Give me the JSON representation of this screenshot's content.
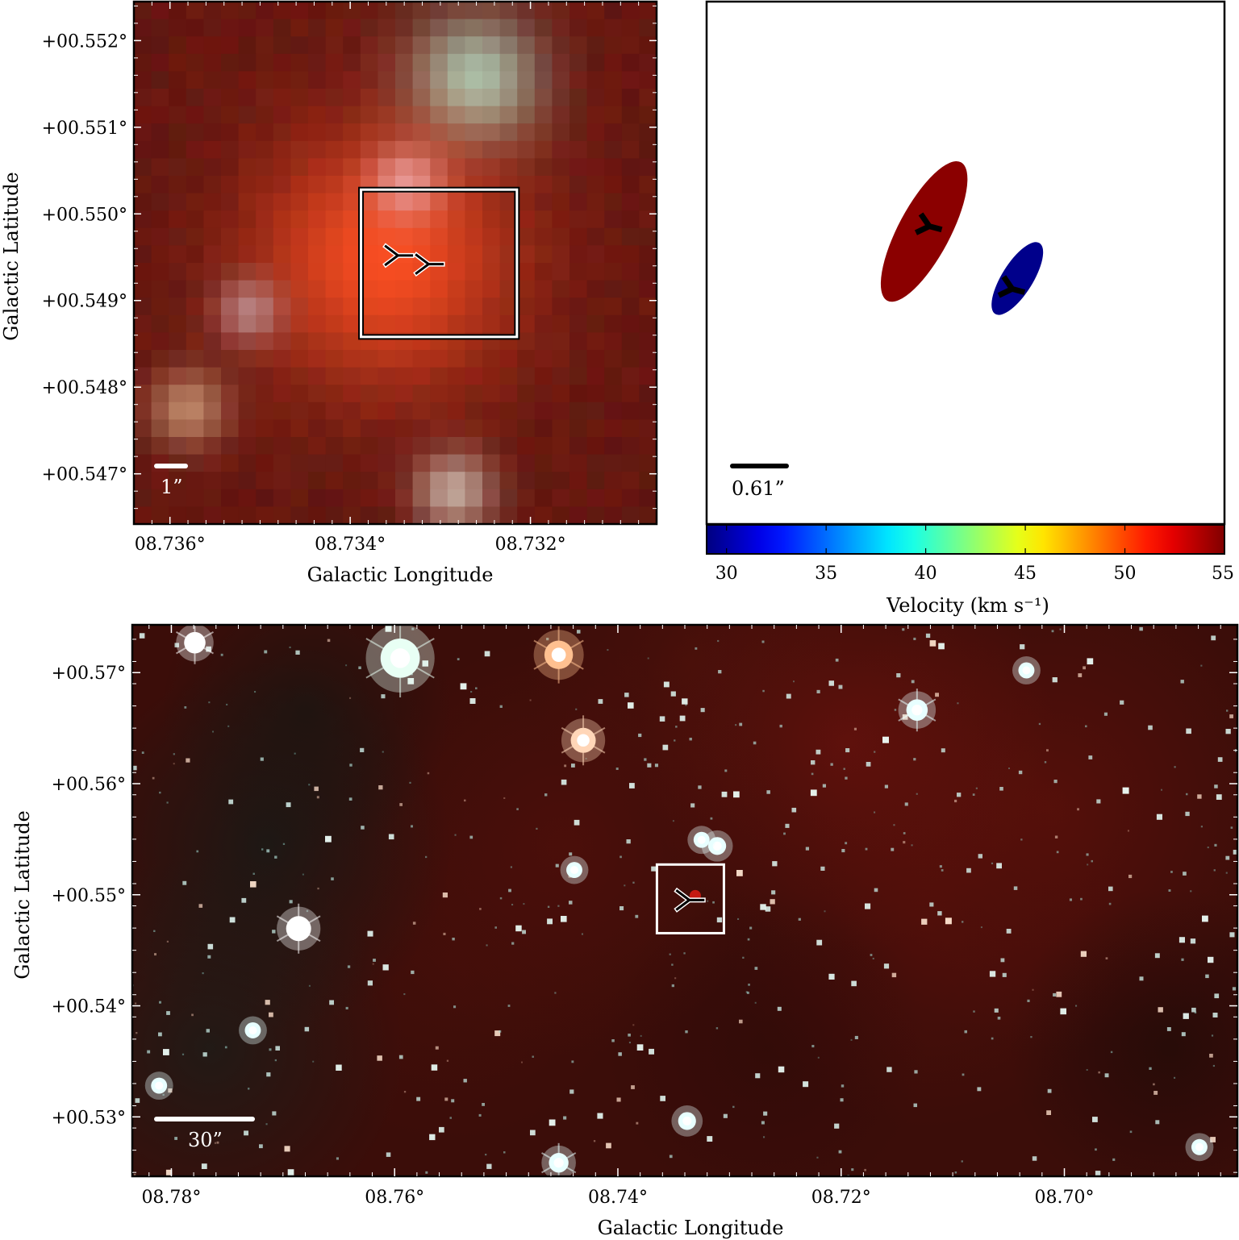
{
  "chart_data": [
    {
      "type": "image",
      "panel": "top-left zoom",
      "xlabel": "Galactic Longitude",
      "ylabel": "Galactic Latitude",
      "xlim": [
        8.7364,
        8.7306
      ],
      "ylim": [
        0.54642,
        0.55245
      ],
      "x_ticks": [
        8.736,
        8.734,
        8.732
      ],
      "x_tick_labels": [
        "08.736°",
        "08.734°",
        "08.732°"
      ],
      "y_ticks": [
        0.552,
        0.551,
        0.55,
        0.549,
        0.548,
        0.547
      ],
      "y_tick_labels": [
        "+00.552°",
        "+00.551°",
        "+00.550°",
        "+00.549°",
        "+00.548°",
        "+00.547°"
      ],
      "scale_bar_label": "1”",
      "box": {
        "l": [
          8.73388,
          8.73215
        ],
        "b": [
          0.54858,
          0.55028
        ]
      },
      "markers": [
        {
          "l": 8.73347,
          "b": 0.54952
        },
        {
          "l": 8.73313,
          "b": 0.54942
        }
      ],
      "sources": [
        {
          "l": 8.73262,
          "b": 0.55155,
          "color": "#a7cfb9",
          "size": 0.0005
        },
        {
          "l": 8.7336,
          "b": 0.5495,
          "color": "#ff5022",
          "size": 0.001
        },
        {
          "l": 8.73338,
          "b": 0.55035,
          "color": "#e89a98",
          "size": 0.00028
        },
        {
          "l": 8.73512,
          "b": 0.54888,
          "color": "#b98484",
          "size": 0.00025
        },
        {
          "l": 8.7358,
          "b": 0.54775,
          "color": "#c08a6a",
          "size": 0.0003
        },
        {
          "l": 8.73285,
          "b": 0.5468,
          "color": "#c6ada0",
          "size": 0.0003
        }
      ]
    },
    {
      "type": "scatter",
      "panel": "top-right velocity map",
      "scale_bar_label": "0.61”",
      "colorbar": {
        "label": "Velocity (km s⁻¹)",
        "range": [
          29,
          55
        ],
        "ticks": [
          30,
          35,
          40,
          45,
          50,
          55
        ],
        "tick_labels": [
          "30",
          "35",
          "40",
          "45",
          "50",
          "55"
        ],
        "colormap": "jet"
      },
      "components": [
        {
          "velocity": 54,
          "color": "#8b0000",
          "x": 0.42,
          "y": 0.44,
          "major": 0.3,
          "minor": 0.1,
          "angle": 28
        },
        {
          "velocity": 30,
          "color": "#00008b",
          "x": 0.6,
          "y": 0.53,
          "major": 0.16,
          "minor": 0.06,
          "angle": 32
        }
      ],
      "markers": [
        {
          "component": 0,
          "x": 0.43,
          "y": 0.43
        },
        {
          "component": 1,
          "x": 0.59,
          "y": 0.55
        }
      ]
    },
    {
      "type": "image",
      "panel": "bottom wide field",
      "xlabel": "Galactic Longitude",
      "ylabel": "Galactic Latitude",
      "xlim": [
        8.7835,
        8.6845
      ],
      "ylim": [
        0.52465,
        0.5743
      ],
      "x_ticks": [
        8.78,
        8.76,
        8.74,
        8.72,
        8.7
      ],
      "x_tick_labels": [
        "08.78°",
        "08.76°",
        "08.74°",
        "08.72°",
        "08.70°"
      ],
      "y_ticks": [
        0.57,
        0.56,
        0.55,
        0.54,
        0.53
      ],
      "y_tick_labels": [
        "+00.57°",
        "+00.56°",
        "+00.55°",
        "+00.54°",
        "+00.53°"
      ],
      "scale_bar_label": "30”",
      "box": {
        "l": [
          8.7365,
          8.7305
        ],
        "b": [
          0.54654,
          0.55272
        ]
      },
      "markers": [
        {
          "l": 8.7336,
          "b": 0.54952
        }
      ],
      "bright_stars": [
        {
          "l": 8.7779,
          "b": 0.57269,
          "color": "#ffffff",
          "size": 0.0012
        },
        {
          "l": 8.7595,
          "b": 0.5713,
          "color": "#e8fff4",
          "size": 0.0022
        },
        {
          "l": 8.7453,
          "b": 0.5716,
          "color": "#ffc090",
          "size": 0.0016
        },
        {
          "l": 8.7431,
          "b": 0.5639,
          "color": "#ffd6b8",
          "size": 0.0014
        },
        {
          "l": 8.7686,
          "b": 0.54695,
          "color": "#ffffff",
          "size": 0.0014
        },
        {
          "l": 8.7132,
          "b": 0.56663,
          "color": "#e8ffff",
          "size": 0.0012
        },
        {
          "l": 8.7034,
          "b": 0.5702,
          "color": "#e8ffff",
          "size": 0.0009
        },
        {
          "l": 8.7311,
          "b": 0.55439,
          "color": "#e8ffff",
          "size": 0.001
        },
        {
          "l": 8.7325,
          "b": 0.55494,
          "color": "#e8ffff",
          "size": 0.0009
        },
        {
          "l": 8.7453,
          "b": 0.52587,
          "color": "#e8ffff",
          "size": 0.0011
        },
        {
          "l": 8.7338,
          "b": 0.52963,
          "color": "#e8ffff",
          "size": 0.001
        },
        {
          "l": 8.7439,
          "b": 0.55223,
          "color": "#e8ffff",
          "size": 0.0009
        },
        {
          "l": 8.7811,
          "b": 0.53281,
          "color": "#e8ffff",
          "size": 0.0009
        },
        {
          "l": 8.7727,
          "b": 0.53779,
          "color": "#e8ffff",
          "size": 0.0009
        },
        {
          "l": 8.6879,
          "b": 0.52728,
          "color": "#e8ffff",
          "size": 0.0009
        }
      ]
    }
  ]
}
